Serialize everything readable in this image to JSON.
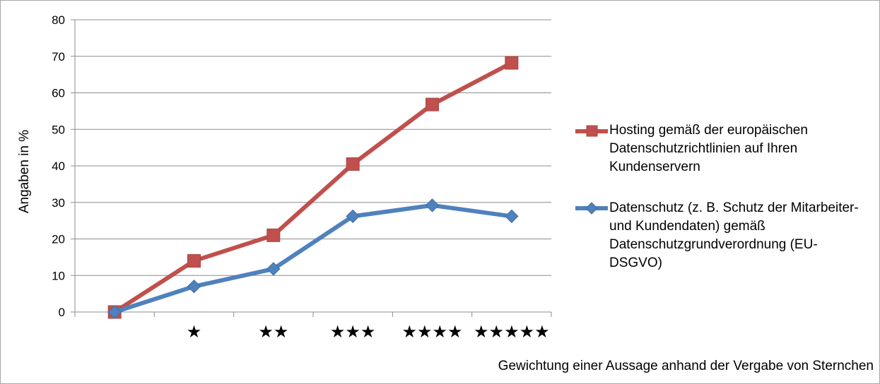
{
  "chart_data": {
    "type": "line",
    "categories": [
      "",
      "★",
      "★★",
      "★★★",
      "★★★★",
      "★★★★★"
    ],
    "series": [
      {
        "name": "Hosting gemäß der europäischen Datenschutzrichtlinien auf Ihren Kundenservern",
        "values": [
          0,
          14,
          21,
          40.5,
          56.8,
          68.2
        ],
        "color": "#c0504d",
        "marker": "square"
      },
      {
        "name": "Datenschutz (z. B. Schutz der Mitarbeiter- und Kundendaten) gemäß Datenschutzgrundverordnung (EU-DSGVO)",
        "values": [
          0,
          7,
          11.8,
          26.2,
          29.2,
          26.2
        ],
        "color": "#4f81bd",
        "marker": "diamond"
      }
    ],
    "xlabel": "Gewichtung einer Aussage anhand der Vergabe von Sternchen",
    "ylabel": "Angaben in %",
    "ylim": [
      0,
      80
    ],
    "yticks": [
      "0",
      "10",
      "20",
      "30",
      "40",
      "50",
      "60",
      "70",
      "80"
    ],
    "grid": true,
    "legend_position": "right"
  }
}
